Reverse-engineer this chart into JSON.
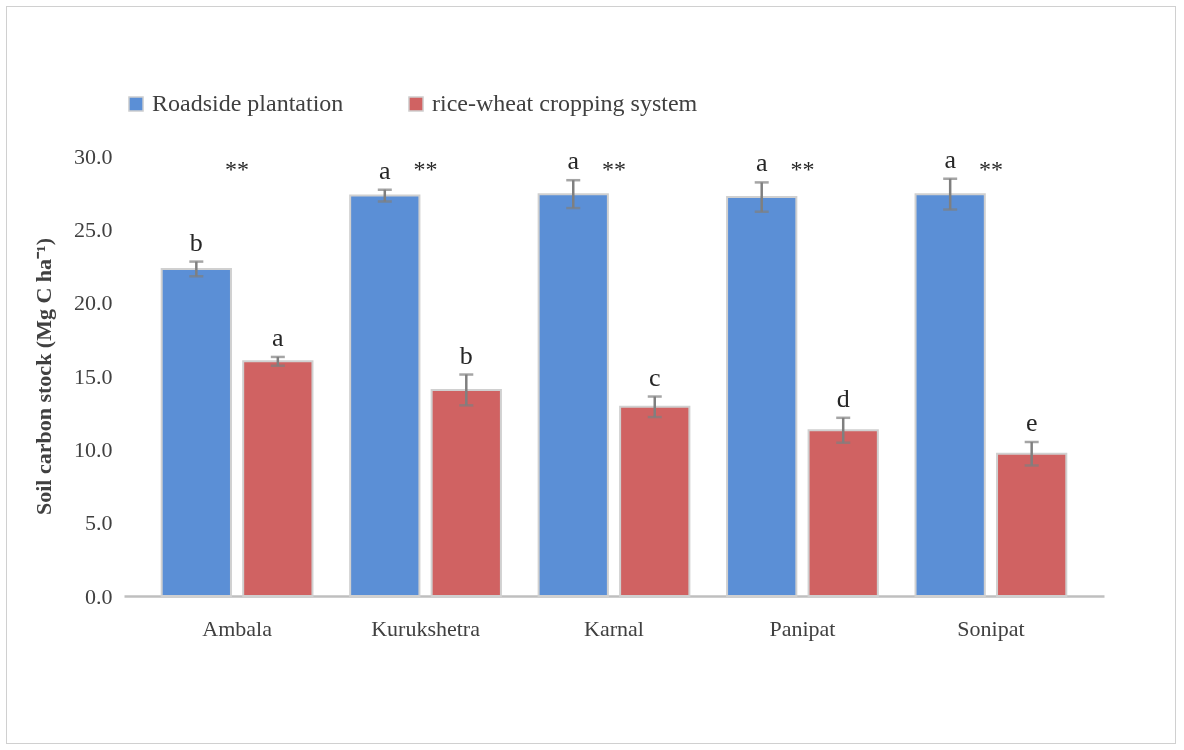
{
  "chart_data": {
    "type": "bar",
    "ylabel": "Soil carbon stock (Mg C ha⁻¹)",
    "categories": [
      "Ambala",
      "Kurukshetra",
      "Karnal",
      "Panipat",
      "Sonipat"
    ],
    "series": [
      {
        "name": "Roadside plantation",
        "color": "#5b8fd6",
        "values": [
          22.3,
          27.3,
          27.4,
          27.2,
          27.4
        ],
        "errors": [
          0.5,
          0.4,
          0.95,
          1.0,
          1.05
        ]
      },
      {
        "name": "rice-wheat cropping system",
        "color": "#d06262",
        "values": [
          16.0,
          14.05,
          12.9,
          11.3,
          9.7
        ],
        "errors": [
          0.3,
          1.05,
          0.7,
          0.85,
          0.8
        ]
      }
    ],
    "ylim": [
      0,
      30
    ],
    "yticks": [
      {
        "value": 0,
        "label": "0.0"
      },
      {
        "value": 5,
        "label": "5.0"
      },
      {
        "value": 10,
        "label": "10.0"
      },
      {
        "value": 15,
        "label": "15.0"
      },
      {
        "value": 20,
        "label": "20.0"
      },
      {
        "value": 25,
        "label": "25.0"
      },
      {
        "value": 30,
        "label": "30.0"
      }
    ],
    "grid": false,
    "legend": "top",
    "annotations": [
      "b",
      "a",
      "**",
      "a",
      "b",
      "**",
      "a",
      "c",
      "**",
      "a",
      "d",
      "**",
      "a",
      "e",
      "**"
    ]
  }
}
